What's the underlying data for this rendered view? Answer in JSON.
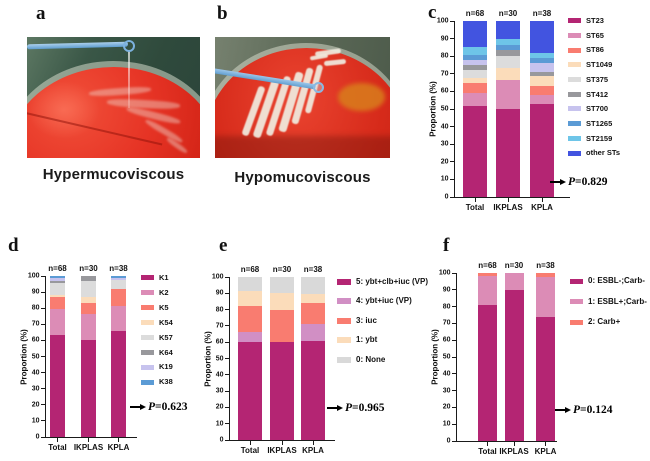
{
  "figure": {
    "panel_a": {
      "letter": "a",
      "caption": "Hypermucoviscous",
      "plate_color": "#d92c1c",
      "loop_color": "#7cb1de"
    },
    "panel_b": {
      "letter": "b",
      "caption": "Hypomucoviscous",
      "plate_color": "#d62a1a",
      "loop_color": "#8ab8e2"
    }
  },
  "chart_data": [
    {
      "id": "c",
      "letter": "c",
      "type": "bar",
      "subtype": "stacked-percent",
      "categories": [
        "Total",
        "IKPLAS",
        "KPLA"
      ],
      "n_labels": [
        "n=68",
        "n=30",
        "n=38"
      ],
      "ylabel": "Proportion (%)",
      "xlabel": "",
      "ylim": [
        0,
        100
      ],
      "yticks": [
        0,
        10,
        20,
        30,
        40,
        50,
        60,
        70,
        80,
        90,
        100
      ],
      "legend_position": "right",
      "p_label": "P=0.829",
      "series": [
        {
          "name": "ST23",
          "color": "#B42573",
          "values": [
            51.5,
            50.0,
            52.6
          ]
        },
        {
          "name": "ST65",
          "color": "#DC8CB6",
          "values": [
            7.4,
            16.7,
            5.3
          ]
        },
        {
          "name": "ST86",
          "color": "#F97C70",
          "values": [
            5.9,
            0,
            5.3
          ]
        },
        {
          "name": "ST1049",
          "color": "#FBDCBA",
          "values": [
            2.9,
            6.7,
            5.3
          ]
        },
        {
          "name": "ST375",
          "color": "#DCDCDC",
          "values": [
            4.4,
            6.6,
            0
          ]
        },
        {
          "name": "ST412",
          "color": "#98989C",
          "values": [
            2.9,
            3.3,
            2.6
          ]
        },
        {
          "name": "ST700",
          "color": "#C7C3EE",
          "values": [
            2.9,
            0,
            5.3
          ]
        },
        {
          "name": "ST1265",
          "color": "#5B9BD5",
          "values": [
            2.9,
            3.3,
            2.6
          ]
        },
        {
          "name": "ST2159",
          "color": "#6EC5E8",
          "values": [
            4.4,
            3.4,
            2.6
          ]
        },
        {
          "name": "other STs",
          "color": "#4254E0",
          "values": [
            14.8,
            10.0,
            18.4
          ]
        }
      ]
    },
    {
      "id": "d",
      "letter": "d",
      "type": "bar",
      "subtype": "stacked-percent",
      "categories": [
        "Total",
        "IKPLAS",
        "KPLA"
      ],
      "n_labels": [
        "n=68",
        "n=30",
        "n=38"
      ],
      "ylabel": "Proportion (%)",
      "xlabel": "",
      "ylim": [
        0,
        100
      ],
      "yticks": [
        0,
        10,
        20,
        30,
        40,
        50,
        60,
        70,
        80,
        90,
        100
      ],
      "legend_position": "right",
      "p_label": "P=0.623",
      "series": [
        {
          "name": "K1",
          "color": "#B42573",
          "values": [
            63.2,
            60.0,
            65.8
          ]
        },
        {
          "name": "K2",
          "color": "#DC8CB6",
          "values": [
            16.2,
            16.7,
            15.8
          ]
        },
        {
          "name": "K5",
          "color": "#F97C70",
          "values": [
            7.4,
            6.7,
            10.5
          ]
        },
        {
          "name": "K54",
          "color": "#FBDCBA",
          "values": [
            1.5,
            3.3,
            0
          ]
        },
        {
          "name": "K57",
          "color": "#DCDCDC",
          "values": [
            7.4,
            10.0,
            5.3
          ]
        },
        {
          "name": "K64",
          "color": "#98989C",
          "values": [
            1.5,
            3.3,
            0
          ]
        },
        {
          "name": "K19",
          "color": "#C7C3EE",
          "values": [
            1.4,
            0,
            1.3
          ]
        },
        {
          "name": "K38",
          "color": "#5B9BD5",
          "values": [
            1.4,
            0,
            1.3
          ]
        }
      ]
    },
    {
      "id": "e",
      "letter": "e",
      "type": "bar",
      "subtype": "stacked-percent",
      "categories": [
        "Total",
        "IKPLAS",
        "KPLA"
      ],
      "n_labels": [
        "n=68",
        "n=30",
        "n=38"
      ],
      "ylabel": "Proportion (%)",
      "xlabel": "",
      "ylim": [
        0,
        100
      ],
      "yticks": [
        0,
        10,
        20,
        30,
        40,
        50,
        60,
        70,
        80,
        90,
        100
      ],
      "legend_position": "right",
      "p_label": "P=0.965",
      "series": [
        {
          "name": "5: ybt+clb+iuc (VP)",
          "color": "#B42573",
          "values": [
            60.3,
            60.0,
            60.5
          ]
        },
        {
          "name": "4: ybt+iuc (VP)",
          "color": "#D18FC4",
          "values": [
            5.9,
            0,
            10.5
          ]
        },
        {
          "name": "3: iuc",
          "color": "#F97C70",
          "values": [
            16.2,
            20.0,
            13.2
          ]
        },
        {
          "name": "1: ybt",
          "color": "#FBDCBA",
          "values": [
            8.8,
            10.0,
            5.3
          ]
        },
        {
          "name": "0: None",
          "color": "#D9D9D9",
          "values": [
            8.8,
            10.0,
            10.5
          ]
        }
      ]
    },
    {
      "id": "f",
      "letter": "f",
      "type": "bar",
      "subtype": "stacked-percent",
      "categories": [
        "Total",
        "IKPLAS",
        "KPLA"
      ],
      "n_labels": [
        "n=68",
        "n=30",
        "n=38"
      ],
      "ylabel": "Proportion (%)",
      "xlabel": "",
      "ylim": [
        0,
        100
      ],
      "yticks": [
        0,
        10,
        20,
        30,
        40,
        50,
        60,
        70,
        80,
        90,
        100
      ],
      "legend_position": "right",
      "p_label": "P=0.124",
      "series": [
        {
          "name": "0: ESBL-;Carb-",
          "color": "#B42573",
          "values": [
            80.9,
            90.0,
            73.7
          ]
        },
        {
          "name": "1: ESBL+;Carb-",
          "color": "#DC8CB6",
          "values": [
            17.6,
            10.0,
            23.7
          ]
        },
        {
          "name": "2: Carb+",
          "color": "#F97C70",
          "values": [
            1.5,
            0,
            2.6
          ]
        }
      ]
    }
  ]
}
